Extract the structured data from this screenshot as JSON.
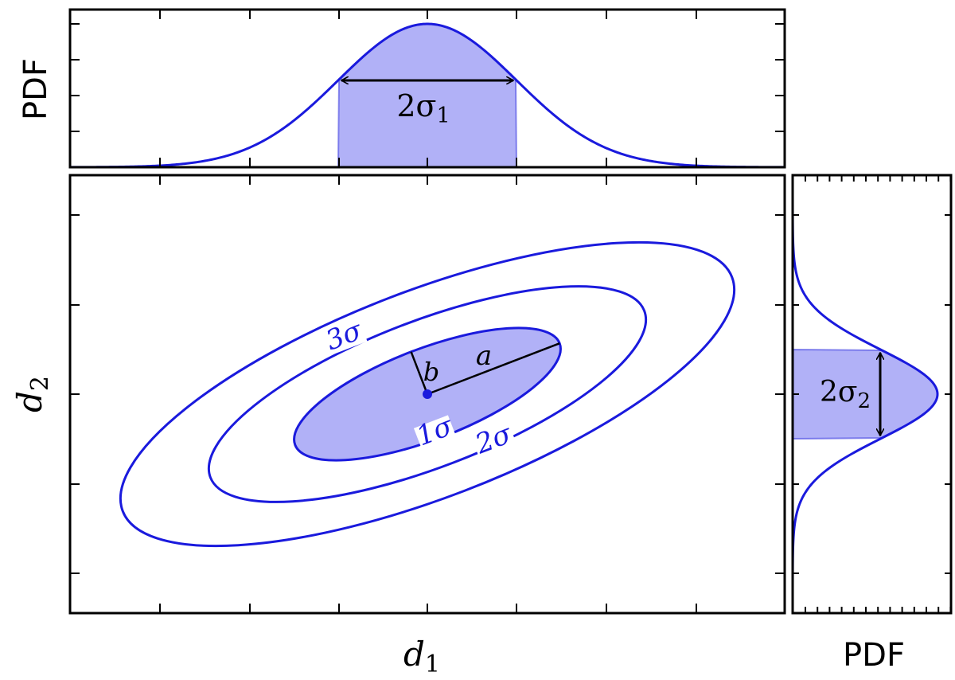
{
  "top_panel": {
    "y_label": "PDF",
    "width_label": {
      "text": "2σ",
      "sub": "1"
    }
  },
  "main_panel": {
    "x_label": {
      "text": "d",
      "sub": "1"
    },
    "y_label": {
      "text": "d",
      "sub": "2"
    },
    "contour_labels": [
      "1σ",
      "2σ",
      "3σ"
    ],
    "axis_labels": [
      "a",
      "b"
    ]
  },
  "right_panel": {
    "x_label": "PDF",
    "width_label": {
      "text": "2σ",
      "sub": "2"
    }
  }
}
